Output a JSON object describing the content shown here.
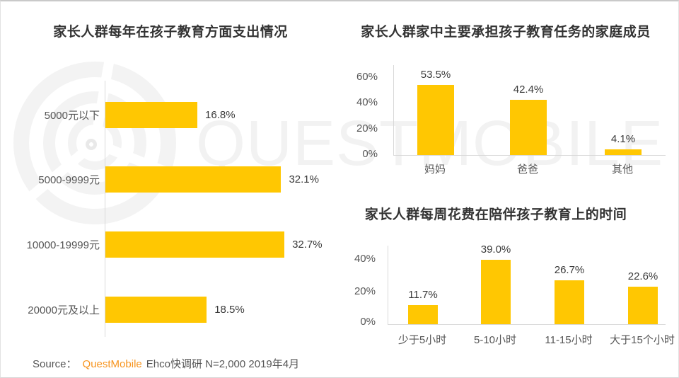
{
  "watermark": {
    "text": "QUESTMOBILE",
    "logo": "questmobile-rings-logo"
  },
  "colors": {
    "bar_yellow": "#FFC702",
    "brand_orange": "#F7941E",
    "axis_gray": "#d9d9d9"
  },
  "source": {
    "prefix": "Source：",
    "brand": "QuestMobile",
    "detail": "Ehco快调研 N=2,000 2019年4月"
  },
  "chart_data": [
    {
      "id": "annual-education-spend",
      "type": "bar",
      "orientation": "horizontal",
      "title": "家长人群每年在孩子教育方面支出情况",
      "categories": [
        "5000元以下",
        "5000-9999元",
        "10000-19999元",
        "20000元及以上"
      ],
      "values": [
        16.8,
        32.1,
        32.7,
        18.5
      ],
      "labels": [
        "16.8%",
        "32.1%",
        "32.7%",
        "18.5%"
      ],
      "xlim": [
        0,
        35
      ],
      "grid": false,
      "legend": "none"
    },
    {
      "id": "main-education-family-member",
      "type": "bar",
      "orientation": "vertical",
      "title": "家长人群家中主要承担孩子教育任务的家庭成员",
      "categories": [
        "妈妈",
        "爸爸",
        "其他"
      ],
      "values": [
        53.5,
        42.4,
        4.1
      ],
      "labels": [
        "53.5%",
        "42.4%",
        "4.1%"
      ],
      "yticks": [
        "60%",
        "40%",
        "20%",
        "0%"
      ],
      "ylim": [
        0,
        66
      ],
      "grid": false,
      "legend": "none"
    },
    {
      "id": "weekly-accompany-time",
      "type": "bar",
      "orientation": "vertical",
      "title": "家长人群每周花费在陪伴孩子教育上的时间",
      "categories": [
        "少于5小时",
        "5-10小时",
        "11-15小时",
        "大于15个小时"
      ],
      "values": [
        11.7,
        39.0,
        26.7,
        22.6
      ],
      "labels": [
        "11.7%",
        "39.0%",
        "26.7%",
        "22.6%"
      ],
      "yticks": [
        "40%",
        "20%",
        "0%"
      ],
      "ylim": [
        0,
        48
      ],
      "grid": false,
      "legend": "none"
    }
  ]
}
